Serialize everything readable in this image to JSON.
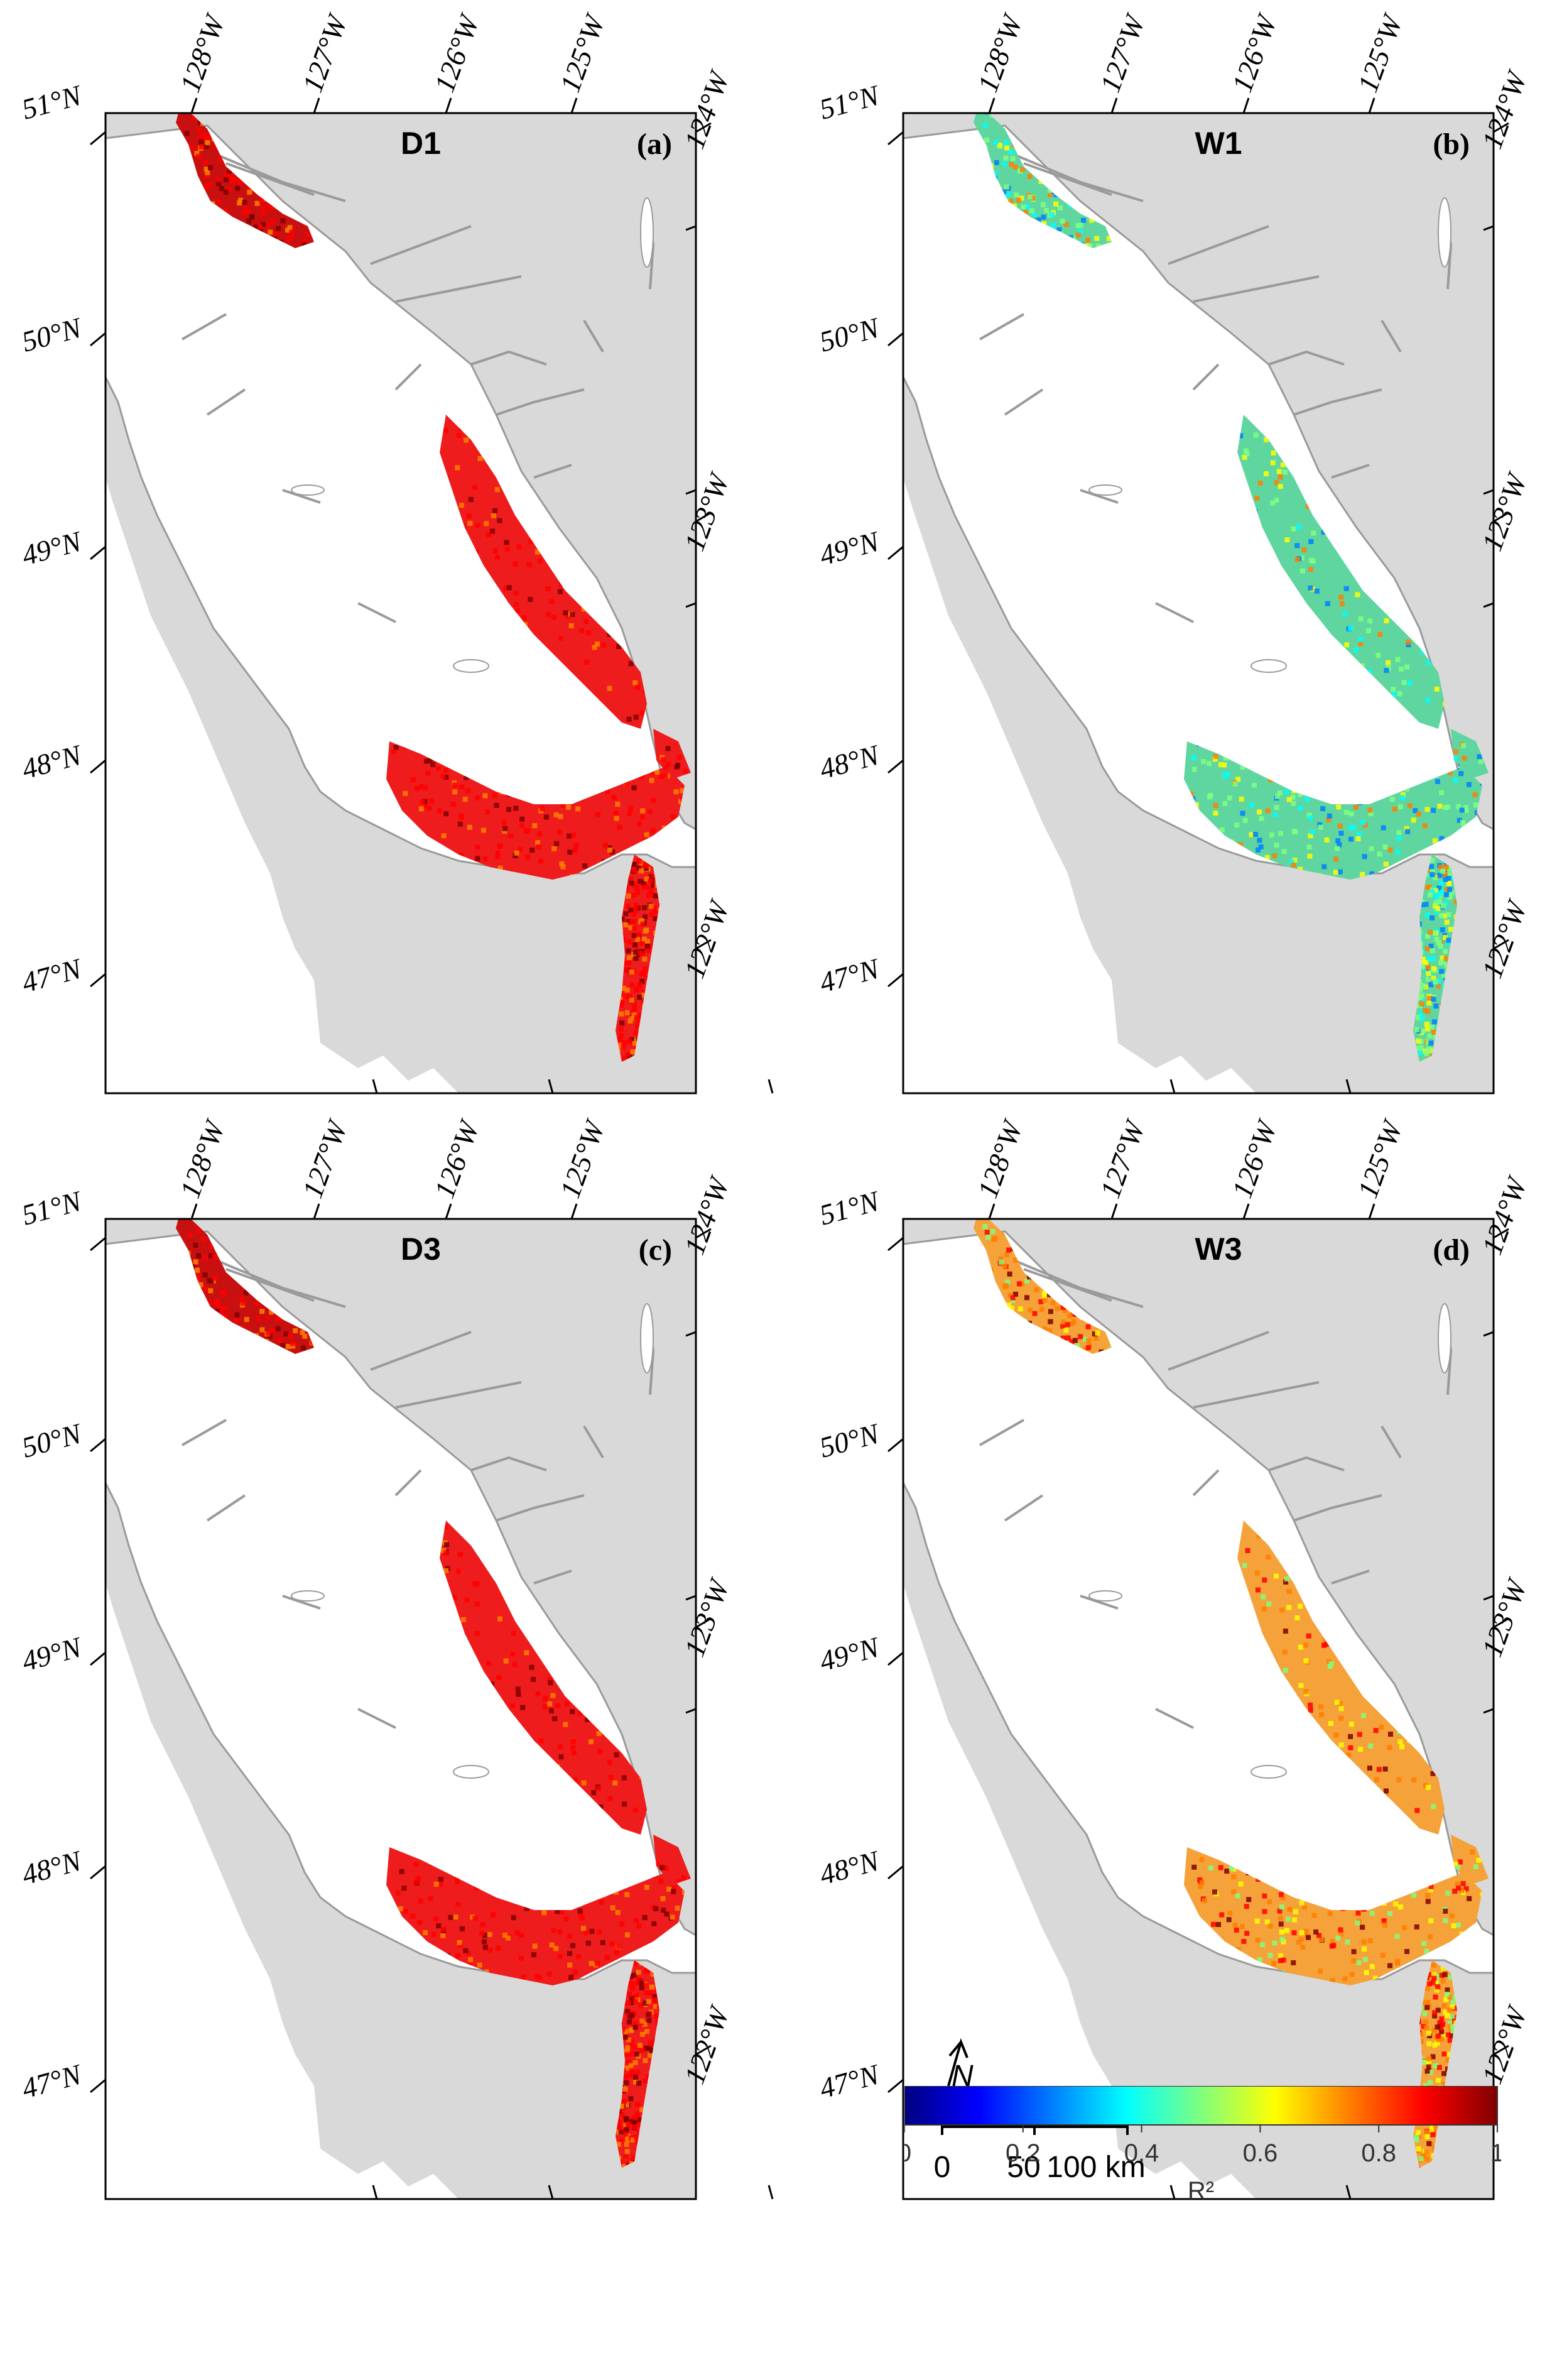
{
  "panels": [
    {
      "title": "D1",
      "tag": "(a)",
      "style": "red"
    },
    {
      "title": "W1",
      "tag": "(b)",
      "style": "cool"
    },
    {
      "title": "D3",
      "tag": "(c)",
      "style": "red"
    },
    {
      "title": "W3",
      "tag": "(d)",
      "style": "warm"
    }
  ],
  "lon_labels_top": [
    "128°W",
    "127°W",
    "126°W",
    "125°W"
  ],
  "lon_labels_right": [
    "124°W",
    "123°W",
    "122°W"
  ],
  "lat_labels": [
    "51°N",
    "50°N",
    "49°N",
    "48°N",
    "47°N"
  ],
  "scale_bar": {
    "labels": [
      "0",
      "50",
      "100 km"
    ]
  },
  "north_arrow": {
    "label": "N"
  },
  "colorbar": {
    "ticks": [
      "0",
      "0.2",
      "0.4",
      "0.6",
      "0.8",
      "1"
    ],
    "label": "R²",
    "min": 0,
    "max": 1,
    "colors": [
      "#00007f",
      "#0000ff",
      "#007fff",
      "#00ffff",
      "#7fff7f",
      "#ffff00",
      "#ff7f00",
      "#ff0000",
      "#7f0000"
    ]
  },
  "colors": {
    "land": "#d9d9d9",
    "coast": "#9a9a9a",
    "water": "#ffffff",
    "red_fill": "#ee1c1c",
    "red_dark": "#c81010",
    "cool_fill": "#5fd6a0",
    "warm_fill": "#f5a23a"
  }
}
